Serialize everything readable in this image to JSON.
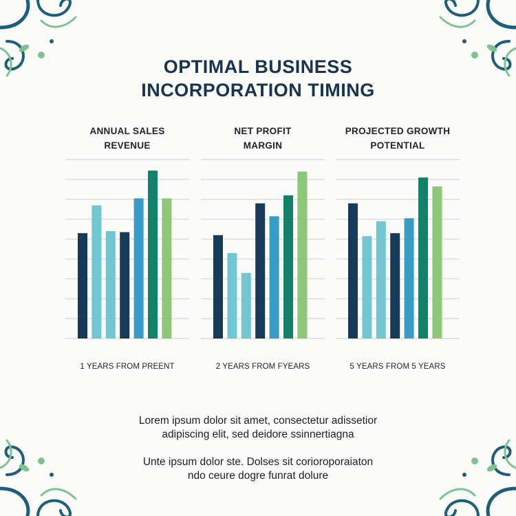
{
  "title": {
    "line1": "OPTIMAL BUSINESS",
    "line2": "INCORPORATION TIMING"
  },
  "paragraphs": [
    {
      "line1": "Lorem ipsum dolor sit amet, consectetur adissetior",
      "line2": "adipiscing elit, sed deidore ssinnertiagna"
    },
    {
      "line1": "Unte ipsum dolor ste. Dolses sit corioroporaiaton",
      "line2": "ndo ceure dogre funrat dolure"
    }
  ],
  "colors": {
    "navy": "#163a58",
    "light_teal": "#70c7d2",
    "blue": "#389cc6",
    "green": "#138068",
    "light_green": "#8ec778",
    "grid": "#d4d7db",
    "ornament_dark": "#1c5e7c",
    "ornament_light": "#7cc38e"
  },
  "decorations": {
    "corner_ornament_icon": "swirl-flourish-icon"
  },
  "chart_data": [
    {
      "type": "bar",
      "title_line1": "ANNUAL SALES",
      "title_line2": "REVENUE",
      "xlabel": "1 YEARS FROM PREENT",
      "ylim": [
        0,
        9
      ],
      "grid": true,
      "values": [
        5.3,
        6.7,
        5.4,
        5.35,
        7.05,
        8.45,
        7.05
      ],
      "colors": [
        "#163a58",
        "#70c7d2",
        "#70c7d2",
        "#163a58",
        "#389cc6",
        "#138068",
        "#8ec778"
      ]
    },
    {
      "type": "bar",
      "title_line1": "NET PROFIT",
      "title_line2": "MARGIN",
      "xlabel": "2 YEARS FROM FYEARS",
      "ylim": [
        0,
        9
      ],
      "grid": true,
      "values": [
        5.2,
        4.3,
        3.3,
        6.8,
        6.15,
        7.2,
        8.4
      ],
      "colors": [
        "#163a58",
        "#70c7d2",
        "#70c7d2",
        "#163a58",
        "#389cc6",
        "#138068",
        "#8ec778"
      ]
    },
    {
      "type": "bar",
      "title_line1": "PROJECTED GROWTH",
      "title_line2": "POTENTIAL",
      "xlabel": "5 YEARS FROM 5 YEARS",
      "ylim": [
        0,
        9
      ],
      "grid": true,
      "values": [
        6.8,
        5.15,
        5.9,
        5.3,
        6.05,
        8.1,
        7.65
      ],
      "colors": [
        "#163a58",
        "#70c7d2",
        "#70c7d2",
        "#163a58",
        "#389cc6",
        "#138068",
        "#8ec778"
      ]
    }
  ]
}
